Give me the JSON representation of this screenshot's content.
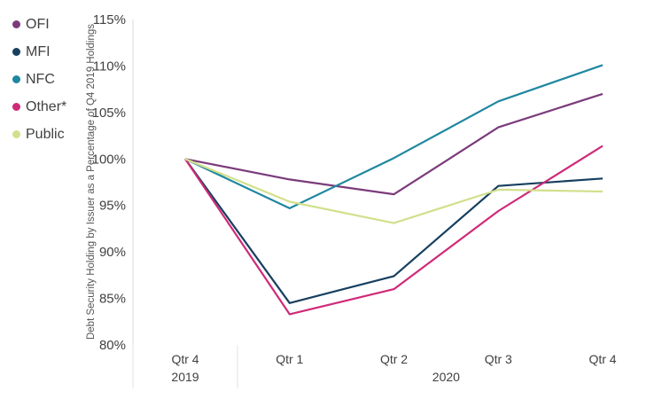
{
  "chart_data": {
    "type": "line",
    "categories": [
      "Qtr 4",
      "Qtr 1",
      "Qtr 2",
      "Qtr 3",
      "Qtr 4"
    ],
    "year_groups": [
      {
        "label": "2019",
        "span": [
          0,
          0
        ]
      },
      {
        "label": "2020",
        "span": [
          1,
          4
        ]
      }
    ],
    "ylabel": "Debt Security Holding by Issuer as a Percentage of Q4 2019 Holdings",
    "ylim": [
      80,
      115
    ],
    "yticks": [
      "80%",
      "85%",
      "90%",
      "95%",
      "100%",
      "105%",
      "110%",
      "115%"
    ],
    "ytick_values": [
      80,
      85,
      90,
      95,
      100,
      105,
      110,
      115
    ],
    "legend_position": "top-left",
    "series": [
      {
        "name": "OFI",
        "color": "#7b3b7b",
        "values": [
          100,
          97.8,
          96.2,
          103.4,
          107.0
        ]
      },
      {
        "name": "MFI",
        "color": "#173f5f",
        "values": [
          100,
          84.5,
          87.4,
          97.1,
          97.9
        ]
      },
      {
        "name": "NFC",
        "color": "#1f87a0",
        "values": [
          100,
          94.7,
          100.1,
          106.2,
          110.1
        ]
      },
      {
        "name": "Other*",
        "color": "#cf2a78",
        "values": [
          100,
          83.3,
          86.0,
          94.4,
          101.4
        ]
      },
      {
        "name": "Public",
        "color": "#d2e08c",
        "values": [
          100,
          95.4,
          93.1,
          96.7,
          96.5
        ]
      }
    ]
  }
}
